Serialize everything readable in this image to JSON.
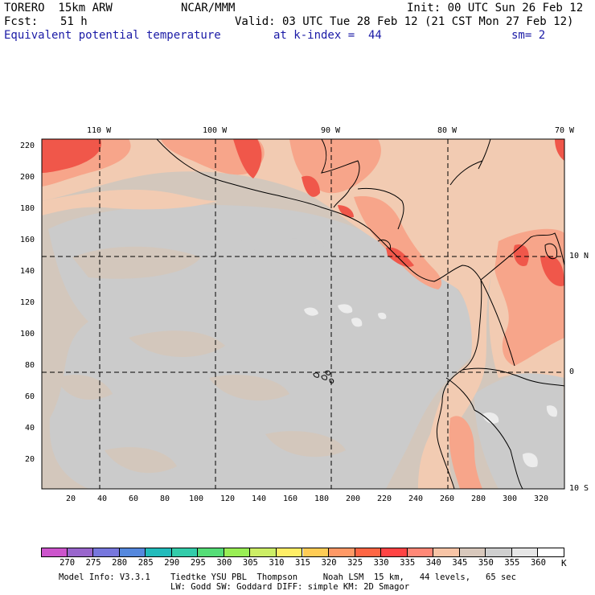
{
  "header": {
    "model": "TORERO  15km ARW",
    "center": "NCAR/MMM",
    "init": "Init: 00 UTC Sun 26 Feb 12",
    "fcst_label": "Fcst:",
    "fcst_value": "51 h",
    "valid": "Valid: 03 UTC Tue 28 Feb 12 (21 CST Mon 27 Feb 12)",
    "field": "Equivalent potential temperature",
    "level": "at k-index =  44",
    "smoothing": "sm= 2"
  },
  "axes": {
    "top_lon_labels": [
      "110 W",
      "100 W",
      "90 W",
      "80 W",
      "70 W"
    ],
    "right_lat_labels": [
      "10 N",
      "0",
      "10 S"
    ],
    "left_grid_labels": [
      "220",
      "200",
      "180",
      "160",
      "140",
      "120",
      "100",
      "80",
      "60",
      "40",
      "20"
    ],
    "bottom_grid_labels": [
      "20",
      "40",
      "60",
      "80",
      "100",
      "120",
      "140",
      "160",
      "180",
      "200",
      "220",
      "240",
      "260",
      "280",
      "300",
      "320"
    ]
  },
  "colorbar": {
    "labels": [
      "270",
      "275",
      "280",
      "285",
      "290",
      "295",
      "300",
      "305",
      "310",
      "315",
      "320",
      "325",
      "330",
      "335",
      "340",
      "345",
      "350",
      "355",
      "360"
    ],
    "unit": "K",
    "colors": [
      "#cc55cc",
      "#9966cc",
      "#7777dd",
      "#5588dd",
      "#22bbbb",
      "#33ccaa",
      "#55dd77",
      "#99ee55",
      "#ccee66",
      "#ffee66",
      "#ffcc55",
      "#ff9966",
      "#ff6644",
      "#ff4444",
      "#ff8877",
      "#f7c4a6",
      "#d8c8bc",
      "#cfcfcf",
      "#e6e6e6",
      "#ffffff"
    ]
  },
  "footer": {
    "line1": "Model Info: V3.3.1    Tiedtke YSU PBL  Thompson     Noah LSM  15 km,   44 levels,   65 sec",
    "line2": "LW: Godd SW: Goddard DIFF: simple KM: 2D Smagor"
  },
  "map_colors": {
    "background": "#d3c7bc",
    "gray": "#cbcbcb",
    "light_peach": "#f2cbb2",
    "salmon": "#f7a58a",
    "red": "#f0574a",
    "white": "#ffffff"
  }
}
